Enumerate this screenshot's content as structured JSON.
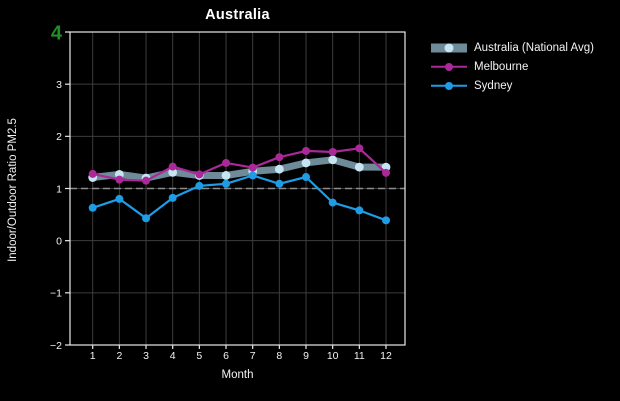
{
  "chart_data": {
    "type": "line",
    "title": "Australia",
    "xlabel": "Month",
    "ylabel": "Indoor/Outdoor Ratio PM2.5",
    "x": [
      1,
      2,
      3,
      4,
      5,
      6,
      7,
      8,
      9,
      10,
      11,
      12
    ],
    "ylim": [
      -2,
      4
    ],
    "yticks": [
      -2,
      -1,
      0,
      1,
      2,
      3,
      4
    ],
    "ytick_highlight": {
      "value": 4,
      "color": "#1e9025",
      "font_size": 20
    },
    "grid": true,
    "reference_line": {
      "y": 1,
      "style": "dashed",
      "color": "#8c8c8c"
    },
    "legend_position": "outside-top-right",
    "series": [
      {
        "name": "Australia (National Avg)",
        "style": "band",
        "color": "#6f8a99",
        "marker_color": "#c6e4f2",
        "line_width": 7,
        "values": [
          1.21,
          1.27,
          1.2,
          1.31,
          1.25,
          1.25,
          1.33,
          1.37,
          1.49,
          1.55,
          1.41,
          1.41
        ]
      },
      {
        "name": "Melbourne",
        "style": "line",
        "color": "#ab2899",
        "marker_color": "#ab2899",
        "line_width": 2.2,
        "values": [
          1.28,
          1.17,
          1.15,
          1.42,
          1.27,
          1.49,
          1.4,
          1.6,
          1.72,
          1.7,
          1.77,
          1.3
        ]
      },
      {
        "name": "Sydney",
        "style": "line",
        "color": "#1e9ce6",
        "marker_color": "#1e9ce6",
        "line_width": 2.2,
        "values": [
          0.63,
          0.8,
          0.43,
          0.82,
          1.05,
          1.09,
          1.25,
          1.09,
          1.22,
          0.73,
          0.58,
          0.39
        ]
      }
    ]
  },
  "colors": {
    "background": "#000000",
    "grid": "#3d3d3d",
    "spine": "#e8e8e8",
    "text": "#f2f2f2",
    "reference_dashed": "#8c8c8c",
    "highlight_green": "#1e9025"
  }
}
